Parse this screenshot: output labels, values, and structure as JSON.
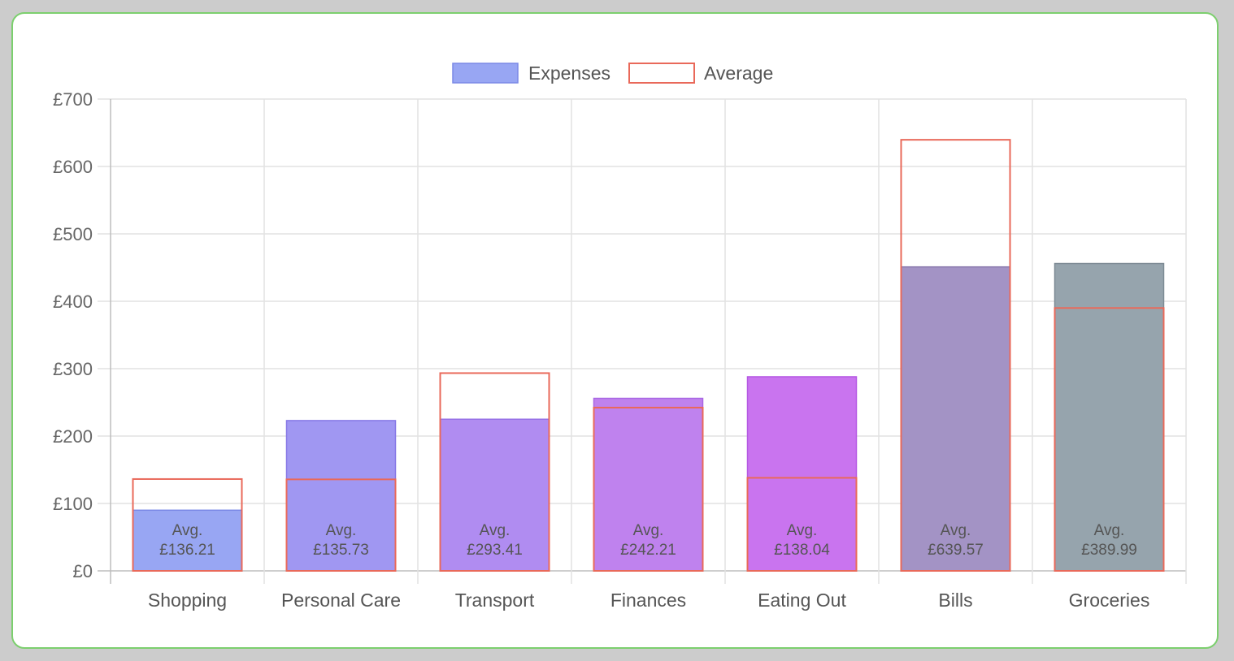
{
  "chart_data": {
    "type": "bar",
    "categories": [
      "Shopping",
      "Personal Care",
      "Transport",
      "Finances",
      "Eating Out",
      "Bills",
      "Groceries"
    ],
    "series": [
      {
        "name": "Expenses",
        "values": [
          90,
          223,
          225,
          256,
          288,
          451,
          456
        ],
        "colors": [
          "#98a6f3",
          "#a097f2",
          "#b08cf1",
          "#bf82ee",
          "#c974ef",
          "#a393c5",
          "#96a4ad"
        ],
        "edge_colors": [
          "#7a88e6",
          "#8678e6",
          "#9670e6",
          "#a866e3",
          "#b458e3",
          "#8a7aae",
          "#7d8a94"
        ]
      },
      {
        "name": "Average",
        "values": [
          136.21,
          135.73,
          293.41,
          242.21,
          138.04,
          639.57,
          389.99
        ],
        "color": "#e9695a"
      }
    ],
    "avg_label_prefix": "Avg.",
    "avg_labels": [
      "£136.21",
      "£135.73",
      "£293.41",
      "£242.21",
      "£138.04",
      "£639.57",
      "£389.99"
    ],
    "y_ticks": [
      "£0",
      "£100",
      "£200",
      "£300",
      "£400",
      "£500",
      "£600",
      "£700"
    ],
    "ylim": [
      0,
      700
    ],
    "grid": true,
    "legend_position": "top-center",
    "title": "",
    "xlabel": "",
    "ylabel": ""
  }
}
